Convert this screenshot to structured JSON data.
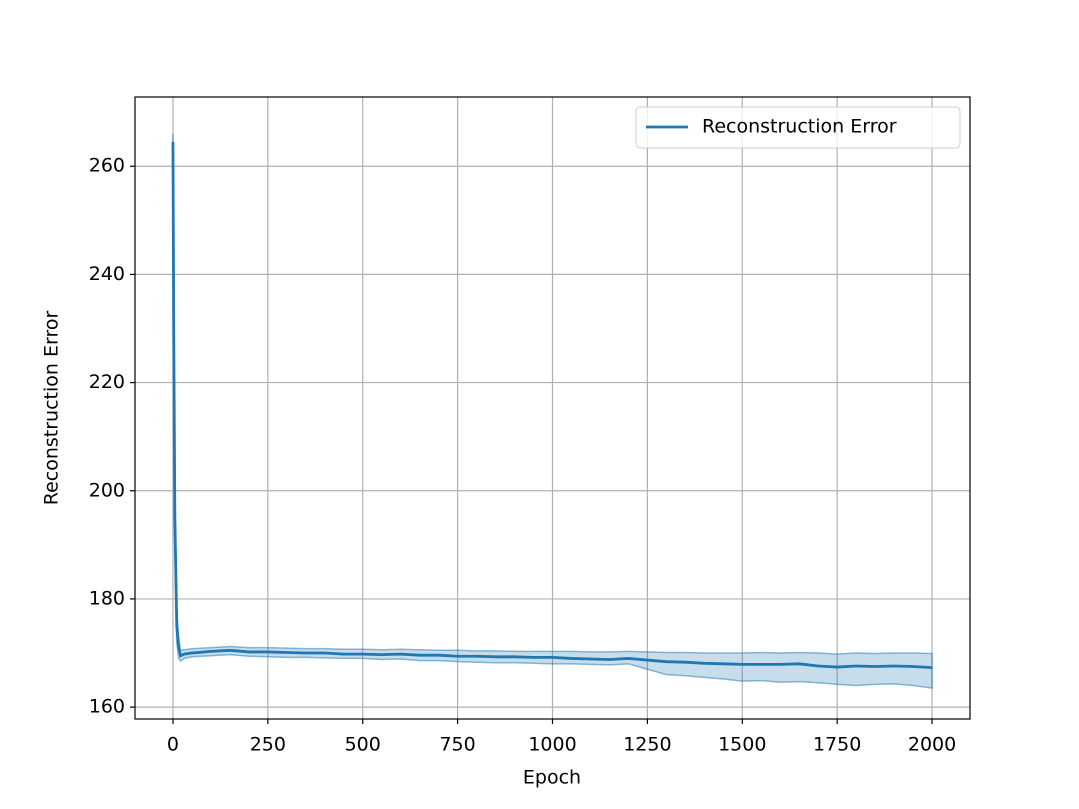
{
  "chart_data": {
    "type": "line",
    "xlabel": "Epoch",
    "ylabel": "Reconstruction Error",
    "x": [
      0,
      2,
      5,
      10,
      15,
      20,
      30,
      50,
      100,
      150,
      200,
      250,
      300,
      350,
      400,
      450,
      500,
      550,
      600,
      650,
      700,
      750,
      800,
      850,
      900,
      950,
      1000,
      1050,
      1100,
      1150,
      1200,
      1250,
      1300,
      1350,
      1400,
      1450,
      1500,
      1550,
      1600,
      1650,
      1700,
      1750,
      1800,
      1850,
      1900,
      1950,
      2000
    ],
    "series": [
      {
        "name": "Reconstruction Error",
        "color": "#1f77b4",
        "values": [
          264.5,
          230,
          195,
          175,
          171,
          169.5,
          169.8,
          170,
          170.3,
          170.5,
          170.2,
          170.2,
          170.1,
          170,
          170,
          169.8,
          169.8,
          169.7,
          169.8,
          169.6,
          169.6,
          169.4,
          169.4,
          169.3,
          169.3,
          169.2,
          169.2,
          169,
          168.9,
          168.8,
          169,
          168.7,
          168.4,
          168.3,
          168.1,
          168,
          167.9,
          167.9,
          167.9,
          168,
          167.6,
          167.4,
          167.6,
          167.5,
          167.6,
          167.5,
          167.3
        ],
        "upper": [
          266,
          235,
          200,
          178,
          173,
          170.5,
          170.6,
          170.8,
          171,
          171.2,
          171,
          171,
          170.9,
          170.8,
          170.8,
          170.7,
          170.7,
          170.6,
          170.7,
          170.6,
          170.5,
          170.5,
          170.4,
          170.4,
          170.3,
          170.3,
          170.3,
          170.3,
          170.2,
          170.2,
          170.3,
          170.2,
          170.1,
          170.1,
          170,
          170,
          170,
          170.1,
          170,
          170.1,
          170,
          169.8,
          170,
          169.9,
          170,
          170,
          169.9
        ],
        "lower": [
          262,
          225,
          190,
          172,
          169,
          168.5,
          169,
          169.3,
          169.5,
          169.7,
          169.4,
          169.3,
          169.2,
          169.2,
          169.1,
          169,
          169,
          168.8,
          168.9,
          168.6,
          168.6,
          168.4,
          168.3,
          168.2,
          168.2,
          168.1,
          168,
          168,
          167.9,
          167.8,
          168,
          167,
          166,
          165.8,
          165.5,
          165.2,
          164.8,
          164.9,
          164.6,
          164.7,
          164.5,
          164.2,
          164,
          164.2,
          164.3,
          164,
          163.5
        ]
      }
    ],
    "xlim": [
      -100,
      2100
    ],
    "ylim": [
      157.8,
      272.8
    ],
    "xticks": [
      0,
      250,
      500,
      750,
      1000,
      1250,
      1500,
      1750,
      2000
    ],
    "yticks": [
      160,
      180,
      200,
      220,
      240,
      260
    ],
    "grid": true,
    "legend": "upper right"
  }
}
